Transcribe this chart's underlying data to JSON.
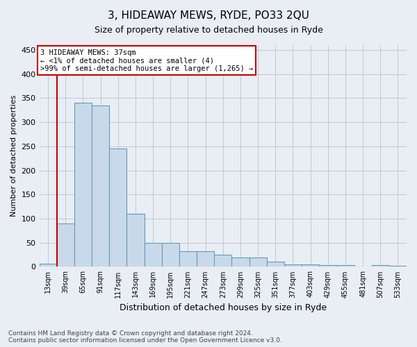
{
  "title": "3, HIDEAWAY MEWS, RYDE, PO33 2QU",
  "subtitle": "Size of property relative to detached houses in Ryde",
  "xlabel": "Distribution of detached houses by size in Ryde",
  "ylabel": "Number of detached properties",
  "bar_color": "#c8daea",
  "bar_edge_color": "#6699bb",
  "categories": [
    "13sqm",
    "39sqm",
    "65sqm",
    "91sqm",
    "117sqm",
    "143sqm",
    "169sqm",
    "195sqm",
    "221sqm",
    "247sqm",
    "273sqm",
    "299sqm",
    "325sqm",
    "351sqm",
    "377sqm",
    "403sqm",
    "429sqm",
    "455sqm",
    "481sqm",
    "507sqm",
    "533sqm"
  ],
  "values": [
    6,
    90,
    340,
    335,
    245,
    110,
    50,
    50,
    32,
    32,
    25,
    20,
    20,
    10,
    5,
    5,
    4,
    4,
    1,
    4,
    2
  ],
  "ylim": [
    0,
    460
  ],
  "yticks": [
    0,
    50,
    100,
    150,
    200,
    250,
    300,
    350,
    400,
    450
  ],
  "annotation_line1": "3 HIDEAWAY MEWS: 37sqm",
  "annotation_line2": "← <1% of detached houses are smaller (4)",
  "annotation_line3": ">99% of semi-detached houses are larger (1,265) →",
  "annotation_box_color": "#ffffff",
  "annotation_box_edge_color": "#cc0000",
  "marker_line_color": "#cc0000",
  "footer": "Contains HM Land Registry data © Crown copyright and database right 2024.\nContains public sector information licensed under the Open Government Licence v3.0.",
  "bg_color": "#e8eef4",
  "plot_bg_color": "#e8eef4",
  "grid_color": "#c0c8d0"
}
